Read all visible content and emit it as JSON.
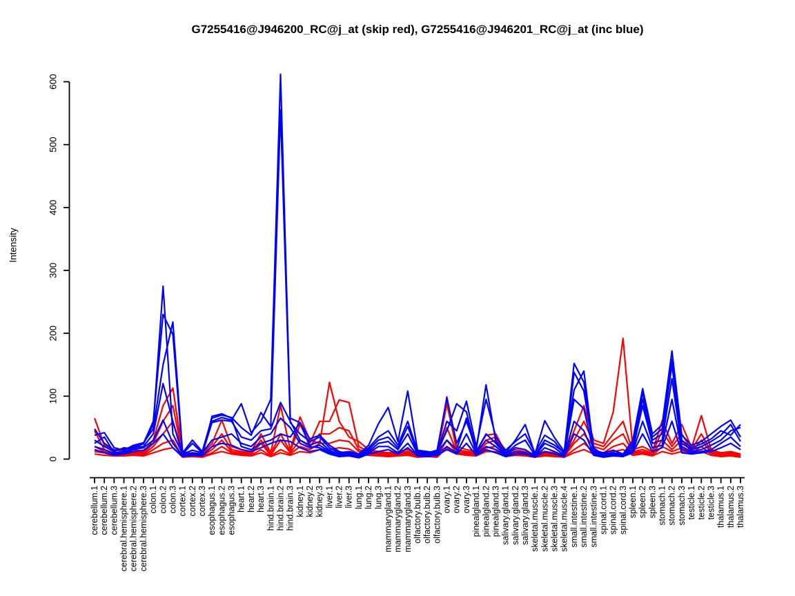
{
  "title": "G7255416@J946200_RC@j_at (skip red), G7255416@J946201_RC@j_at (inc blue)",
  "chart_data": {
    "type": "line",
    "title": "G7255416@J946200_RC@j_at (skip red), G7255416@J946201_RC@j_at (inc blue)",
    "xlabel": "",
    "ylabel": "Intensity",
    "ylim": [
      0,
      620
    ],
    "yticks": [
      0,
      100,
      200,
      300,
      400,
      500,
      600
    ],
    "grid": false,
    "legend_position": "none",
    "colors": {
      "skip": "#FF0000",
      "inc": "#0000FF"
    },
    "categories": [
      "cerebellum.1",
      "cerebellum.2",
      "cerebellum.3",
      "cerebral.hemisphere.1",
      "cerebral.hemisphere.2",
      "cerebral.hemisphere.3",
      "colon.1",
      "colon.2",
      "colon.3",
      "cortex.1",
      "cortex.2",
      "cortex.3",
      "esophagus.1",
      "esophagus.2",
      "esophagus.3",
      "heart.1",
      "heart.2",
      "heart.3",
      "hind.brain.1",
      "hind.brain.2",
      "hind.brain.3",
      "kidney.1",
      "kidney.2",
      "kidney.3",
      "liver.1",
      "liver.2",
      "liver.3",
      "lung.1",
      "lung.2",
      "lung.3",
      "mammarygland.1",
      "mammarygland.2",
      "mammarygland.3",
      "olfactory.bulb.1",
      "olfactory.bulb.2",
      "olfactory.bulb.3",
      "ovary.1",
      "ovary.2",
      "ovary.3",
      "pinealgland.1",
      "pinealgland.2",
      "pinealgland.3",
      "salivary.gland.1",
      "salivary.gland.2",
      "salivary.gland.3",
      "skeletal.muscle.1",
      "skeletal.muscle.2",
      "skeletal.muscle.3",
      "skeletal.muscle.4",
      "small.intestine.1",
      "small.intestine.2",
      "small.intestine.3",
      "spinal.cord.1",
      "spinal.cord.2",
      "spinal.cord.3",
      "spleen.1",
      "spleen.2",
      "spleen.3",
      "stomach.1",
      "stomach.2",
      "stomach.3",
      "testicle.1",
      "testicle.2",
      "testicle.3",
      "thalamus.1",
      "thalamus.2",
      "thalamus.3"
    ],
    "series": [
      {
        "name": "skip-1",
        "group": "skip",
        "color": "#FF0000",
        "values": [
          65,
          22,
          15,
          12,
          15,
          12,
          30,
          85,
          113,
          8,
          10,
          8,
          25,
          62,
          20,
          15,
          12,
          40,
          10,
          85,
          15,
          67,
          30,
          25,
          122,
          60,
          35,
          28,
          15,
          12,
          10,
          12,
          15,
          8,
          10,
          8,
          99,
          20,
          15,
          12,
          38,
          40,
          10,
          15,
          12,
          8,
          12,
          10,
          6,
          45,
          85,
          30,
          25,
          75,
          192,
          15,
          20,
          12,
          61,
          25,
          55,
          18,
          69,
          15,
          10,
          12,
          8
        ]
      },
      {
        "name": "skip-2",
        "group": "skip",
        "color": "#FF0000",
        "values": [
          45,
          15,
          10,
          10,
          12,
          10,
          25,
          60,
          85,
          6,
          8,
          6,
          20,
          40,
          15,
          12,
          10,
          30,
          8,
          40,
          12,
          55,
          25,
          60,
          60,
          94,
          90,
          20,
          12,
          10,
          8,
          10,
          12,
          6,
          8,
          6,
          88,
          15,
          12,
          10,
          30,
          35,
          8,
          12,
          10,
          6,
          10,
          8,
          5,
          30,
          60,
          25,
          20,
          40,
          60,
          12,
          15,
          10,
          45,
          20,
          40,
          15,
          40,
          12,
          8,
          10,
          6
        ]
      },
      {
        "name": "skip-3",
        "group": "skip",
        "color": "#FF0000",
        "values": [
          20,
          12,
          8,
          8,
          10,
          8,
          20,
          40,
          60,
          5,
          6,
          5,
          15,
          30,
          12,
          10,
          8,
          25,
          6,
          30,
          10,
          30,
          20,
          40,
          40,
          50,
          45,
          15,
          10,
          8,
          6,
          8,
          10,
          5,
          6,
          5,
          50,
          12,
          10,
          8,
          25,
          30,
          6,
          10,
          8,
          5,
          8,
          6,
          4,
          25,
          40,
          20,
          15,
          30,
          40,
          10,
          12,
          8,
          30,
          15,
          30,
          12,
          30,
          10,
          6,
          8,
          5
        ]
      },
      {
        "name": "skip-4",
        "group": "skip",
        "color": "#FF0000",
        "values": [
          12,
          10,
          6,
          6,
          8,
          6,
          15,
          25,
          30,
          4,
          5,
          4,
          10,
          20,
          10,
          8,
          6,
          15,
          5,
          15,
          8,
          20,
          15,
          25,
          25,
          30,
          28,
          12,
          8,
          6,
          5,
          6,
          8,
          4,
          5,
          4,
          30,
          10,
          8,
          6,
          18,
          20,
          5,
          8,
          6,
          4,
          6,
          5,
          3,
          15,
          25,
          12,
          10,
          20,
          25,
          8,
          10,
          6,
          20,
          12,
          18,
          10,
          20,
          8,
          5,
          6,
          4
        ]
      },
      {
        "name": "skip-5",
        "group": "skip",
        "color": "#FF0000",
        "values": [
          8,
          6,
          5,
          5,
          6,
          5,
          10,
          15,
          18,
          3,
          4,
          3,
          8,
          12,
          8,
          6,
          5,
          10,
          4,
          10,
          6,
          12,
          10,
          15,
          15,
          18,
          16,
          8,
          6,
          5,
          4,
          5,
          6,
          3,
          4,
          3,
          18,
          8,
          6,
          5,
          12,
          12,
          4,
          6,
          5,
          3,
          5,
          4,
          3,
          10,
          15,
          8,
          8,
          12,
          15,
          6,
          8,
          5,
          12,
          8,
          12,
          8,
          12,
          6,
          4,
          5,
          3
        ]
      },
      {
        "name": "inc-6",
        "group": "inc",
        "color": "#0000FF",
        "values": [
          15,
          10,
          6,
          8,
          12,
          14,
          25,
          40,
          18,
          4,
          6,
          5,
          20,
          25,
          22,
          15,
          12,
          18,
          25,
          30,
          28,
          18,
          12,
          15,
          8,
          4,
          5,
          2,
          8,
          12,
          15,
          8,
          18,
          5,
          4,
          6,
          15,
          8,
          25,
          6,
          15,
          10,
          4,
          8,
          8,
          3,
          12,
          8,
          4,
          40,
          30,
          6,
          3,
          5,
          4,
          10,
          40,
          12,
          18,
          60,
          10,
          8,
          10,
          12,
          18,
          25,
          15
        ]
      },
      {
        "name": "inc-5",
        "group": "inc",
        "color": "#0000FF",
        "values": [
          20,
          15,
          8,
          10,
          15,
          18,
          30,
          62,
          25,
          5,
          8,
          6,
          68,
          72,
          65,
          20,
          15,
          25,
          30,
          40,
          35,
          58,
          20,
          18,
          10,
          5,
          6,
          3,
          10,
          20,
          20,
          10,
          25,
          6,
          5,
          8,
          20,
          10,
          40,
          8,
          20,
          15,
          5,
          12,
          10,
          4,
          18,
          12,
          5,
          60,
          45,
          8,
          4,
          6,
          5,
          12,
          60,
          18,
          22,
          95,
          15,
          10,
          12,
          15,
          25,
          35,
          20
        ]
      },
      {
        "name": "inc-4",
        "group": "inc",
        "color": "#0000FF",
        "values": [
          25,
          35,
          10,
          12,
          18,
          20,
          40,
          120,
          60,
          8,
          25,
          10,
          30,
          35,
          40,
          25,
          20,
          35,
          40,
          65,
          50,
          25,
          18,
          22,
          12,
          6,
          8,
          4,
          12,
          25,
          28,
          15,
          40,
          8,
          6,
          10,
          30,
          15,
          65,
          10,
          30,
          20,
          6,
          18,
          15,
          5,
          25,
          18,
          6,
          95,
          80,
          10,
          5,
          8,
          6,
          15,
          85,
          25,
          30,
          128,
          20,
          12,
          15,
          22,
          30,
          45,
          50
        ]
      },
      {
        "name": "inc-3",
        "group": "inc",
        "color": "#0000FF",
        "values": [
          30,
          20,
          12,
          18,
          16,
          25,
          60,
          230,
          198,
          6,
          10,
          8,
          58,
          62,
          60,
          35,
          30,
          45,
          48,
          90,
          60,
          30,
          22,
          28,
          14,
          8,
          10,
          5,
          15,
          30,
          35,
          18,
          52,
          10,
          8,
          12,
          45,
          88,
          75,
          12,
          40,
          25,
          8,
          22,
          30,
          6,
          30,
          22,
          10,
          110,
          140,
          12,
          8,
          10,
          6,
          20,
          95,
          30,
          40,
          150,
          25,
          15,
          20,
          28,
          38,
          55,
          28
        ]
      },
      {
        "name": "inc-2",
        "group": "inc",
        "color": "#0000FF",
        "values": [
          38,
          42,
          18,
          14,
          22,
          26,
          48,
          150,
          218,
          10,
          30,
          12,
          65,
          70,
          66,
          50,
          38,
          74,
          52,
          555,
          58,
          40,
          28,
          35,
          18,
          10,
          12,
          8,
          22,
          56,
          82,
          28,
          108,
          14,
          12,
          10,
          60,
          45,
          92,
          20,
          95,
          35,
          14,
          28,
          40,
          10,
          38,
          28,
          8,
          138,
          108,
          14,
          10,
          14,
          8,
          25,
          105,
          35,
          48,
          158,
          30,
          18,
          24,
          32,
          45,
          38,
          55
        ]
      },
      {
        "name": "inc-1",
        "group": "inc",
        "color": "#0000FF",
        "values": [
          48,
          25,
          14,
          16,
          20,
          24,
          55,
          275,
          40,
          8,
          14,
          10,
          60,
          66,
          62,
          88,
          42,
          60,
          95,
          612,
          65,
          58,
          32,
          38,
          22,
          12,
          8,
          6,
          18,
          35,
          45,
          22,
          60,
          12,
          10,
          14,
          97,
          25,
          60,
          15,
          118,
          28,
          10,
          30,
          55,
          8,
          61,
          34,
          12,
          152,
          122,
          18,
          6,
          10,
          8,
          30,
          112,
          40,
          55,
          172,
          38,
          22,
          28,
          40,
          52,
          62,
          35
        ]
      }
    ]
  }
}
